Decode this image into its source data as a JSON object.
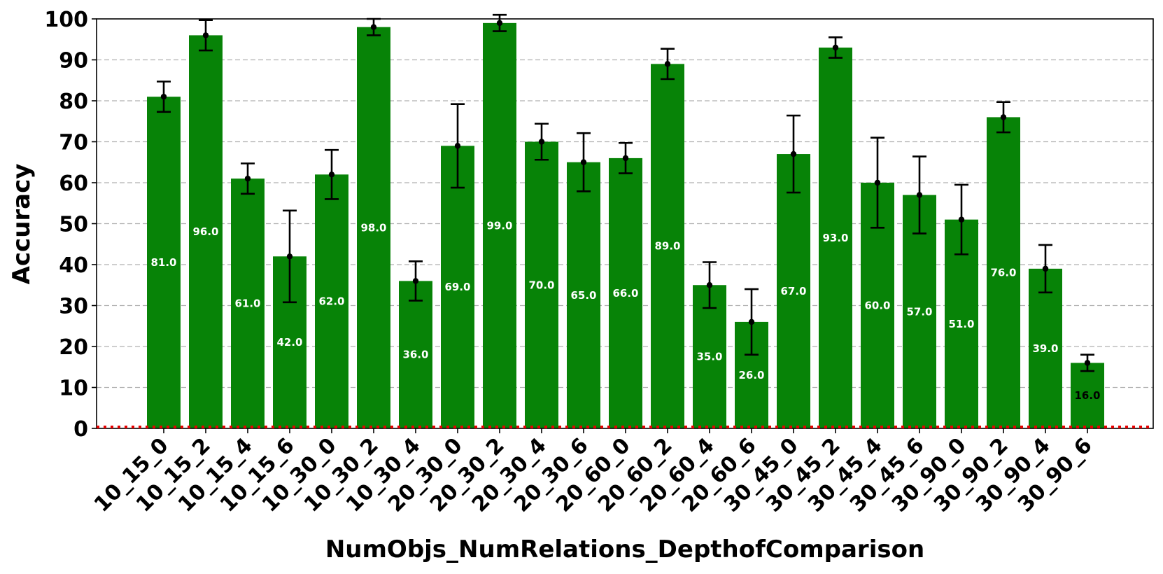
{
  "chart_data": {
    "type": "bar",
    "xlabel": "NumObjs_NumRelations_DepthofComparison",
    "ylabel": "Accuracy",
    "ylim": [
      0,
      100
    ],
    "yticks": [
      "0",
      "10",
      "20",
      "30",
      "40",
      "50",
      "60",
      "70",
      "80",
      "90",
      "100"
    ],
    "grid": "horizontal dashed",
    "categories": [
      "10_15_0",
      "10_15_2",
      "10_15_4",
      "10_15_6",
      "10_30_0",
      "10_30_2",
      "10_30_4",
      "20_30_0",
      "20_30_2",
      "20_30_4",
      "20_30_6",
      "20_60_0",
      "20_60_2",
      "20_60_4",
      "20_60_6",
      "30_45_0",
      "30_45_2",
      "30_45_4",
      "30_45_6",
      "30_90_0",
      "30_90_2",
      "30_90_4",
      "30_90_6"
    ],
    "values": [
      81,
      96,
      61,
      42,
      62,
      98,
      36,
      69,
      99,
      70,
      65,
      66,
      89,
      35,
      26,
      67,
      93,
      60,
      57,
      51,
      76,
      39,
      16
    ],
    "value_labels": [
      "81.0",
      "96.0",
      "61.0",
      "42.0",
      "62.0",
      "98.0",
      "36.0",
      "69.0",
      "99.0",
      "70.0",
      "65.0",
      "66.0",
      "89.0",
      "35.0",
      "26.0",
      "67.0",
      "93.0",
      "60.0",
      "57.0",
      "51.0",
      "76.0",
      "39.0",
      "16.0"
    ],
    "error_bars": [
      3.7,
      3.7,
      3.7,
      11.2,
      6.0,
      2.0,
      4.8,
      10.2,
      2.0,
      4.4,
      7.1,
      3.7,
      3.7,
      5.6,
      8.0,
      9.4,
      2.5,
      11.0,
      9.4,
      8.5,
      3.7,
      5.8,
      2.0
    ],
    "bar_color": "#078307",
    "error_color": "#000000",
    "label_color_inside": "#ffffff",
    "label_color_low": "#000000",
    "baseline_color": "#e60000"
  }
}
